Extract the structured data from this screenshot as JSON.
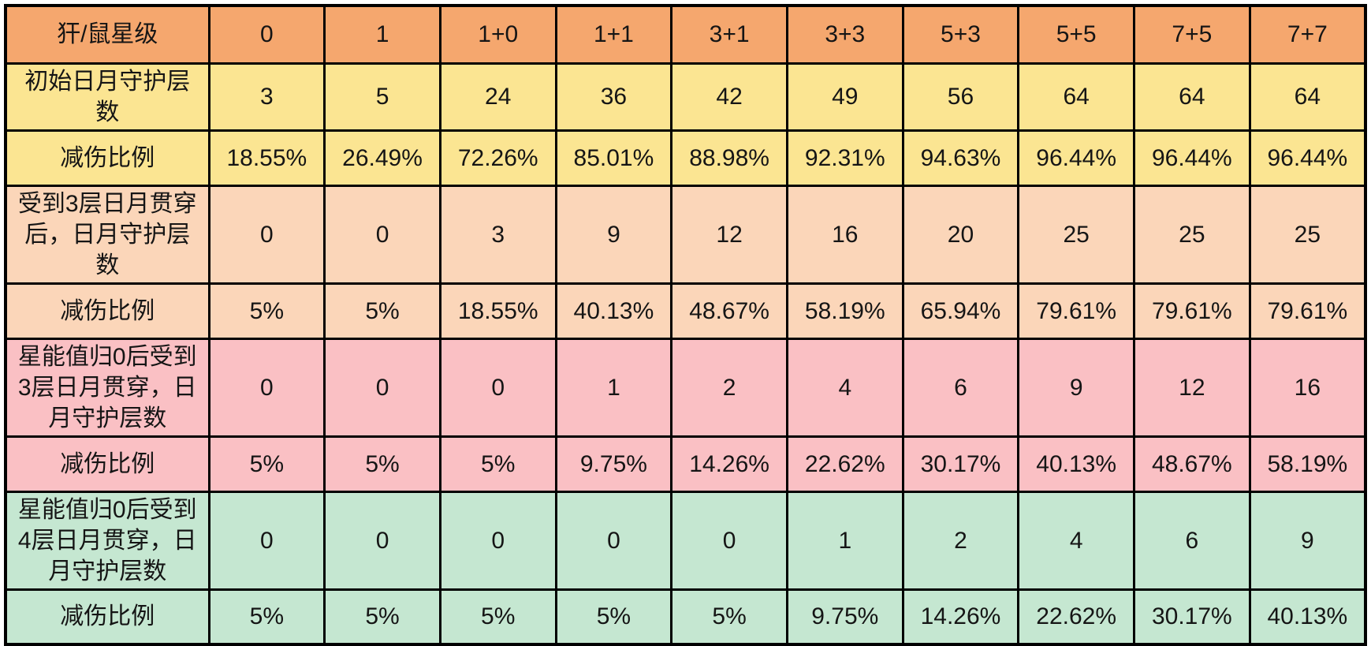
{
  "colors": {
    "header_orange": "#F5A76E",
    "yellow": "#FBE592",
    "peach": "#FBD6B9",
    "pink": "#FAC0C4",
    "green": "#C5E7D1",
    "border": "#000000",
    "text": "#151515"
  },
  "chart_data": {
    "type": "table",
    "corner_label": "犴/鼠星级",
    "columns": [
      "0",
      "1",
      "1+0",
      "1+1",
      "3+1",
      "3+3",
      "5+3",
      "5+5",
      "7+5",
      "7+7"
    ],
    "rows": [
      {
        "label": "初始日月守护层数",
        "band": "yellow",
        "values": [
          "3",
          "5",
          "24",
          "36",
          "42",
          "49",
          "56",
          "64",
          "64",
          "64"
        ]
      },
      {
        "label": "减伤比例",
        "band": "yellow",
        "values": [
          "18.55%",
          "26.49%",
          "72.26%",
          "85.01%",
          "88.98%",
          "92.31%",
          "94.63%",
          "96.44%",
          "96.44%",
          "96.44%"
        ]
      },
      {
        "label": "受到3层日月贯穿后，日月守护层数",
        "band": "peach",
        "values": [
          "0",
          "0",
          "3",
          "9",
          "12",
          "16",
          "20",
          "25",
          "25",
          "25"
        ]
      },
      {
        "label": "减伤比例",
        "band": "peach",
        "values": [
          "5%",
          "5%",
          "18.55%",
          "40.13%",
          "48.67%",
          "58.19%",
          "65.94%",
          "79.61%",
          "79.61%",
          "79.61%"
        ]
      },
      {
        "label": "星能值归0后受到3层日月贯穿，日月守护层数",
        "band": "pink",
        "values": [
          "0",
          "0",
          "0",
          "1",
          "2",
          "4",
          "6",
          "9",
          "12",
          "16"
        ]
      },
      {
        "label": "减伤比例",
        "band": "pink",
        "values": [
          "5%",
          "5%",
          "5%",
          "9.75%",
          "14.26%",
          "22.62%",
          "30.17%",
          "40.13%",
          "48.67%",
          "58.19%"
        ]
      },
      {
        "label": "星能值归0后受到4层日月贯穿，日月守护层数",
        "band": "green",
        "values": [
          "0",
          "0",
          "0",
          "0",
          "0",
          "1",
          "2",
          "4",
          "6",
          "9"
        ]
      },
      {
        "label": "减伤比例",
        "band": "green",
        "values": [
          "5%",
          "5%",
          "5%",
          "5%",
          "5%",
          "9.75%",
          "14.26%",
          "22.62%",
          "30.17%",
          "40.13%"
        ]
      }
    ]
  }
}
